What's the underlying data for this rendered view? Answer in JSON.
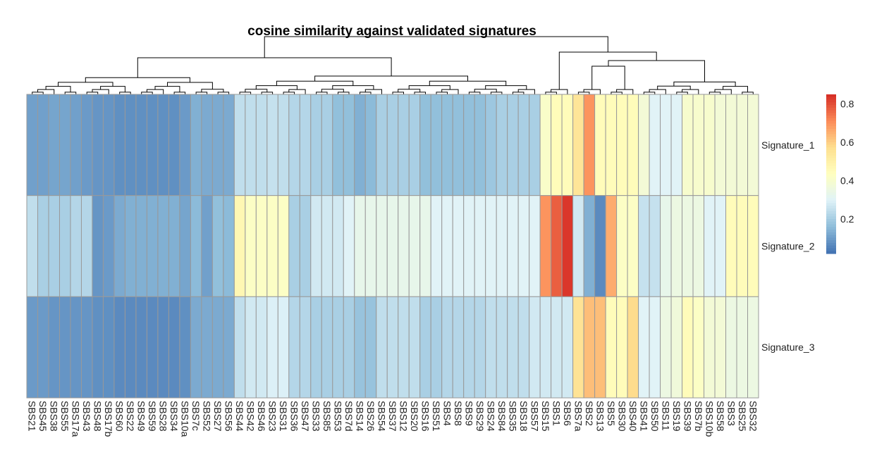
{
  "chart_data": {
    "type": "heatmap",
    "title": "cosine similarity against validated signatures",
    "columns": [
      "SBS21",
      "SBS45",
      "SBS38",
      "SBS55",
      "SBS17a",
      "SBS43",
      "SBS48",
      "SBS17b",
      "SBS60",
      "SBS22",
      "SBS49",
      "SBS59",
      "SBS28",
      "SBS34",
      "SBS10a",
      "SBS7c",
      "SBS52",
      "SBS27",
      "SBS56",
      "SBS44",
      "SBS42",
      "SBS46",
      "SBS23",
      "SBS31",
      "SBS36",
      "SBS47",
      "SBS33",
      "SBS85",
      "SBS53",
      "SBS7d",
      "SBS14",
      "SBS26",
      "SBS54",
      "SBS37",
      "SBS12",
      "SBS20",
      "SBS16",
      "SBS51",
      "SBS4",
      "SBS8",
      "SBS9",
      "SBS29",
      "SBS24",
      "SBS84",
      "SBS35",
      "SBS18",
      "SBS57",
      "SBS15",
      "SBS1",
      "SBS6",
      "SBS7a",
      "SBS2",
      "SBS13",
      "SBS5",
      "SBS30",
      "SBS40",
      "SBS41",
      "SBS50",
      "SBS11",
      "SBS19",
      "SBS39",
      "SBS7b",
      "SBS10b",
      "SBS58",
      "SBS3",
      "SBS25",
      "SBS32"
    ],
    "rows": [
      {
        "name": "Signature_1",
        "values": [
          0.1,
          0.1,
          0.11,
          0.11,
          0.1,
          0.09,
          0.08,
          0.08,
          0.07,
          0.07,
          0.07,
          0.07,
          0.07,
          0.07,
          0.09,
          0.13,
          0.12,
          0.12,
          0.12,
          0.24,
          0.24,
          0.24,
          0.25,
          0.24,
          0.22,
          0.22,
          0.2,
          0.2,
          0.16,
          0.16,
          0.13,
          0.15,
          0.2,
          0.2,
          0.2,
          0.2,
          0.16,
          0.16,
          0.16,
          0.16,
          0.16,
          0.16,
          0.18,
          0.2,
          0.2,
          0.2,
          0.2,
          0.41,
          0.45,
          0.45,
          0.55,
          0.7,
          0.45,
          0.45,
          0.45,
          0.45,
          0.38,
          0.3,
          0.3,
          0.3,
          0.4,
          0.4,
          0.4,
          0.38,
          0.38,
          0.38,
          0.38
        ]
      },
      {
        "name": "Signature_2",
        "values": [
          0.24,
          0.2,
          0.2,
          0.2,
          0.22,
          0.22,
          0.08,
          0.09,
          0.12,
          0.13,
          0.13,
          0.13,
          0.13,
          0.13,
          0.11,
          0.15,
          0.1,
          0.16,
          0.15,
          0.47,
          0.42,
          0.42,
          0.42,
          0.42,
          0.2,
          0.2,
          0.27,
          0.27,
          0.27,
          0.3,
          0.33,
          0.33,
          0.33,
          0.33,
          0.33,
          0.33,
          0.33,
          0.3,
          0.3,
          0.3,
          0.3,
          0.3,
          0.3,
          0.3,
          0.3,
          0.3,
          0.3,
          0.7,
          0.78,
          0.84,
          0.27,
          0.13,
          0.06,
          0.66,
          0.42,
          0.42,
          0.25,
          0.25,
          0.33,
          0.35,
          0.35,
          0.35,
          0.3,
          0.3,
          0.45,
          0.45,
          0.45
        ]
      },
      {
        "name": "Signature_3",
        "values": [
          0.09,
          0.09,
          0.08,
          0.08,
          0.08,
          0.08,
          0.07,
          0.07,
          0.06,
          0.06,
          0.06,
          0.06,
          0.06,
          0.06,
          0.07,
          0.12,
          0.12,
          0.12,
          0.12,
          0.24,
          0.27,
          0.27,
          0.29,
          0.29,
          0.22,
          0.22,
          0.2,
          0.2,
          0.2,
          0.2,
          0.17,
          0.17,
          0.24,
          0.24,
          0.24,
          0.24,
          0.2,
          0.2,
          0.22,
          0.22,
          0.22,
          0.22,
          0.24,
          0.24,
          0.24,
          0.24,
          0.27,
          0.27,
          0.27,
          0.27,
          0.56,
          0.63,
          0.63,
          0.45,
          0.45,
          0.58,
          0.3,
          0.3,
          0.35,
          0.37,
          0.45,
          0.42,
          0.38,
          0.38,
          0.35,
          0.35,
          0.35
        ]
      }
    ],
    "legend": {
      "ticks": [
        0.8,
        0.6,
        0.4,
        0.2
      ],
      "min": 0.02,
      "max": 0.85,
      "placement": "right"
    },
    "colors": {
      "low": "#4575b4",
      "mid": "#ffffbf",
      "high": "#d73027",
      "grid": "#999999"
    }
  }
}
